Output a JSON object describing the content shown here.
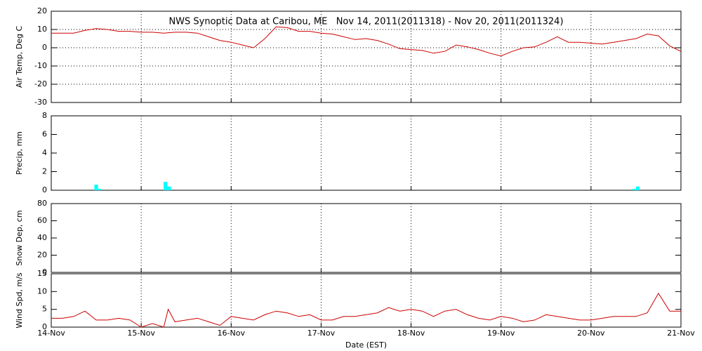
{
  "chart_data": [
    {
      "type": "line",
      "title": "NWS Synoptic Data at Caribou, ME   Nov 14, 2011(2011318) - Nov 20, 2011(2011324)",
      "ylabel": "Air Temp, Deg C",
      "xlim": [
        0,
        7
      ],
      "ylim": [
        -30,
        20
      ],
      "yticks": [
        -30,
        -20,
        -10,
        0,
        10,
        20
      ],
      "grid": "both",
      "x": [
        0,
        0.125,
        0.25,
        0.375,
        0.5,
        0.625,
        0.75,
        0.875,
        1,
        1.125,
        1.25,
        1.375,
        1.5,
        1.625,
        1.75,
        1.875,
        2,
        2.125,
        2.25,
        2.375,
        2.5,
        2.625,
        2.75,
        2.875,
        3,
        3.125,
        3.25,
        3.375,
        3.5,
        3.625,
        3.75,
        3.875,
        4,
        4.125,
        4.25,
        4.375,
        4.5,
        4.625,
        4.75,
        4.875,
        5,
        5.125,
        5.25,
        5.375,
        5.5,
        5.625,
        5.75,
        5.875,
        6,
        6.125,
        6.25,
        6.375,
        6.5,
        6.625,
        6.75,
        6.875,
        7
      ],
      "series": [
        {
          "name": "Air Temp",
          "color": "#cc0000",
          "values": [
            8,
            8,
            8,
            9.5,
            10.5,
            10,
            9,
            9,
            8.5,
            8.5,
            8,
            8.5,
            8.5,
            8,
            6,
            4,
            3,
            1.5,
            0,
            5,
            11.5,
            11,
            9,
            9,
            8,
            7.5,
            6,
            4.5,
            5,
            4,
            2,
            -0.5,
            -1,
            -1.5,
            -3,
            -2,
            1.5,
            0.5,
            -1,
            -3,
            -4.5,
            -2,
            0,
            0.5,
            3,
            6,
            3,
            3,
            2.5,
            2,
            3,
            4,
            5,
            7.5,
            6.5,
            1,
            -2
          ]
        }
      ]
    },
    {
      "type": "bar",
      "ylabel": "Precip, mm",
      "xlim": [
        0,
        7
      ],
      "ylim": [
        0,
        8
      ],
      "yticks": [
        0,
        2,
        4,
        6,
        8
      ],
      "grid": "x",
      "x": [
        0.5,
        0.54,
        1.27,
        1.31,
        6.48,
        6.52
      ],
      "series": [
        {
          "name": "Precip",
          "color": "#00ffff",
          "values": [
            0.6,
            0.15,
            0.9,
            0.4,
            0.15,
            0.4
          ]
        }
      ]
    },
    {
      "type": "line",
      "ylabel": "Snow Dep, cm",
      "xlim": [
        0,
        7
      ],
      "ylim": [
        0,
        80
      ],
      "yticks": [
        0,
        20,
        40,
        60,
        80
      ],
      "grid": "x",
      "x": [],
      "series": []
    },
    {
      "type": "line",
      "ylabel": "Wind Spd, m/s",
      "xlabel": "Date (EST)",
      "xlim": [
        0,
        7
      ],
      "ylim": [
        0,
        15
      ],
      "yticks": [
        0,
        5,
        10,
        15
      ],
      "grid": "x",
      "xticks": [
        {
          "value": 0,
          "label": "14-Nov"
        },
        {
          "value": 1,
          "label": "15-Nov"
        },
        {
          "value": 2,
          "label": "16-Nov"
        },
        {
          "value": 3,
          "label": "17-Nov"
        },
        {
          "value": 4,
          "label": "18-Nov"
        },
        {
          "value": 5,
          "label": "19-Nov"
        },
        {
          "value": 6,
          "label": "20-Nov"
        },
        {
          "value": 7,
          "label": "21-Nov"
        }
      ],
      "x": [
        0,
        0.125,
        0.25,
        0.375,
        0.5,
        0.625,
        0.75,
        0.875,
        1,
        1.125,
        1.25,
        1.3,
        1.375,
        1.5,
        1.625,
        1.75,
        1.875,
        2,
        2.125,
        2.25,
        2.375,
        2.5,
        2.625,
        2.75,
        2.875,
        3,
        3.125,
        3.25,
        3.375,
        3.5,
        3.625,
        3.75,
        3.875,
        4,
        4.125,
        4.25,
        4.375,
        4.5,
        4.625,
        4.75,
        4.875,
        5,
        5.125,
        5.25,
        5.375,
        5.5,
        5.625,
        5.75,
        5.875,
        6,
        6.125,
        6.25,
        6.375,
        6.5,
        6.625,
        6.75,
        6.875,
        7
      ],
      "series": [
        {
          "name": "Wind Spd",
          "color": "#cc0000",
          "values": [
            2.5,
            2.5,
            3,
            4.5,
            2,
            2,
            2.5,
            2,
            0,
            1,
            0,
            5,
            1.5,
            2,
            2.5,
            1.5,
            0.5,
            3,
            2.5,
            2,
            3.5,
            4.5,
            4,
            3,
            3.5,
            2,
            2,
            3,
            3,
            3.5,
            4,
            5.5,
            4.5,
            5,
            4.5,
            3,
            4.5,
            5,
            3.5,
            2.5,
            2,
            3,
            2.5,
            1.5,
            2,
            3.5,
            3,
            2.5,
            2,
            2,
            2.5,
            3,
            3,
            3,
            4,
            9.5,
            4.5,
            4.5
          ]
        }
      ]
    }
  ]
}
